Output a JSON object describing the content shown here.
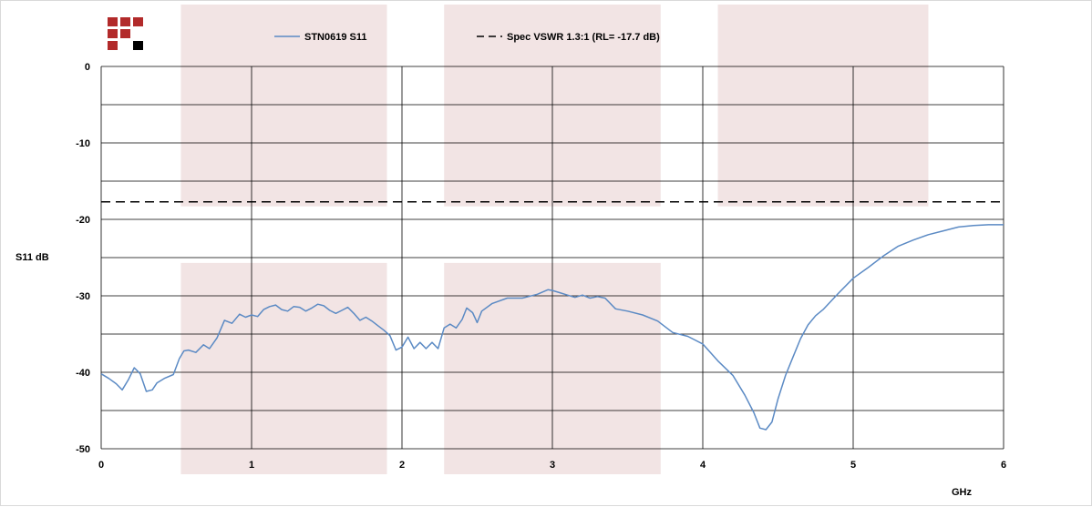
{
  "chart_data": {
    "type": "line",
    "title": "",
    "xlabel": "GHz",
    "ylabel": "S11 dB",
    "xlim": [
      0,
      6
    ],
    "ylim": [
      -50,
      0
    ],
    "x_ticks": [
      "0",
      "1",
      "2",
      "3",
      "4",
      "5",
      "6"
    ],
    "y_ticks": [
      "0",
      "-10",
      "-20",
      "-30",
      "-40",
      "-50"
    ],
    "grid": true,
    "legend_position": "top",
    "bands": [
      {
        "x": [
          0.53,
          1.9
        ],
        "y": [
          -50,
          -25.7
        ]
      },
      {
        "x": [
          2.28,
          3.72
        ],
        "y": [
          -50,
          -25.7
        ]
      },
      {
        "x": [
          0.53,
          1.9
        ],
        "y": [
          -18.3,
          0
        ]
      },
      {
        "x": [
          2.28,
          3.72
        ],
        "y": [
          -18.3,
          0
        ]
      },
      {
        "x": [
          4.1,
          5.5
        ],
        "y": [
          -18.3,
          0
        ]
      }
    ],
    "series": [
      {
        "name": "STN0619 S11",
        "color": "#5b8ac4",
        "style": "solid",
        "x": [
          0.0,
          0.05,
          0.1,
          0.14,
          0.18,
          0.22,
          0.26,
          0.3,
          0.34,
          0.37,
          0.42,
          0.48,
          0.52,
          0.55,
          0.58,
          0.63,
          0.68,
          0.72,
          0.77,
          0.82,
          0.87,
          0.92,
          0.96,
          1.0,
          1.04,
          1.08,
          1.12,
          1.16,
          1.2,
          1.24,
          1.28,
          1.32,
          1.36,
          1.4,
          1.44,
          1.48,
          1.52,
          1.56,
          1.6,
          1.64,
          1.68,
          1.72,
          1.76,
          1.8,
          1.84,
          1.88,
          1.92,
          1.96,
          2.0,
          2.04,
          2.08,
          2.12,
          2.16,
          2.2,
          2.24,
          2.28,
          2.32,
          2.36,
          2.4,
          2.43,
          2.47,
          2.5,
          2.53,
          2.6,
          2.7,
          2.8,
          2.9,
          2.97,
          3.0,
          3.05,
          3.1,
          3.15,
          3.2,
          3.25,
          3.3,
          3.35,
          3.42,
          3.5,
          3.6,
          3.7,
          3.8,
          3.9,
          4.0,
          4.1,
          4.2,
          4.28,
          4.34,
          4.38,
          4.42,
          4.46,
          4.5,
          4.55,
          4.6,
          4.65,
          4.7,
          4.75,
          4.8,
          4.9,
          5.0,
          5.1,
          5.2,
          5.3,
          5.4,
          5.5,
          5.6,
          5.7,
          5.8,
          5.9,
          6.0
        ],
        "values": [
          -40.2,
          -40.8,
          -41.5,
          -42.3,
          -41.0,
          -39.4,
          -40.2,
          -42.5,
          -42.3,
          -41.4,
          -40.8,
          -40.3,
          -38.2,
          -37.2,
          -37.1,
          -37.4,
          -36.4,
          -36.9,
          -35.5,
          -33.2,
          -33.6,
          -32.4,
          -32.8,
          -32.5,
          -32.7,
          -31.8,
          -31.4,
          -31.2,
          -31.8,
          -32.0,
          -31.4,
          -31.5,
          -32.0,
          -31.6,
          -31.1,
          -31.3,
          -31.9,
          -32.3,
          -31.9,
          -31.5,
          -32.3,
          -33.2,
          -32.8,
          -33.3,
          -33.9,
          -34.5,
          -35.2,
          -37.1,
          -36.7,
          -35.4,
          -36.9,
          -36.1,
          -36.9,
          -36.1,
          -36.9,
          -34.2,
          -33.7,
          -34.2,
          -33.1,
          -31.6,
          -32.2,
          -33.5,
          -32.0,
          -31.0,
          -30.3,
          -30.3,
          -29.8,
          -29.2,
          -29.3,
          -29.6,
          -29.9,
          -30.2,
          -29.9,
          -30.3,
          -30.1,
          -30.3,
          -31.7,
          -32.0,
          -32.5,
          -33.3,
          -34.8,
          -35.3,
          -36.3,
          -38.5,
          -40.4,
          -43.0,
          -45.3,
          -47.3,
          -47.5,
          -46.5,
          -43.5,
          -40.4,
          -38.0,
          -35.6,
          -33.8,
          -32.6,
          -31.8,
          -29.7,
          -27.7,
          -26.3,
          -24.8,
          -23.5,
          -22.7,
          -22.0,
          -21.5,
          -21.0,
          -20.8,
          -20.7,
          -20.7
        ]
      },
      {
        "name": "Spec VSWR 1.3:1 (RL= -17.7 dB)",
        "color": "#000000",
        "style": "dashed",
        "x": [
          0,
          6
        ],
        "values": [
          -17.7,
          -17.7
        ]
      }
    ]
  },
  "logo": {
    "squares": [
      {
        "row": 0,
        "col": 0,
        "color": "#b22a2a"
      },
      {
        "row": 0,
        "col": 1,
        "color": "#b22a2a"
      },
      {
        "row": 0,
        "col": 2,
        "color": "#b22a2a"
      },
      {
        "row": 1,
        "col": 0,
        "color": "#b22a2a"
      },
      {
        "row": 1,
        "col": 1,
        "color": "#b22a2a"
      },
      {
        "row": 2,
        "col": 0,
        "color": "#b22a2a"
      },
      {
        "row": 2,
        "col": 2,
        "color": "#000000"
      }
    ]
  },
  "colors": {
    "band_fill": "#f2e4e4",
    "grid": "#000000",
    "background": "#ffffff"
  }
}
